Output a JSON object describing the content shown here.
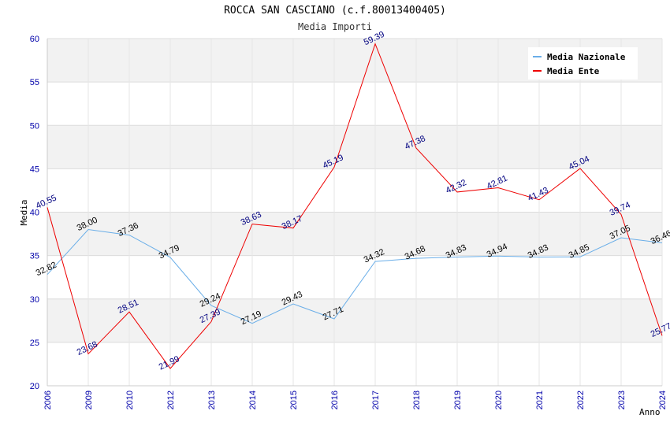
{
  "title": "ROCCA SAN CASCIANO (c.f.80013400405)",
  "subtitle": "Media Importi",
  "chart_data": {
    "type": "line",
    "categories": [
      "2006",
      "2009",
      "2010",
      "2012",
      "2013",
      "2014",
      "2015",
      "2016",
      "2017",
      "2018",
      "2019",
      "2020",
      "2021",
      "2022",
      "2023",
      "2024"
    ],
    "series": [
      {
        "name": "Media Nazionale",
        "color": "#6aaee8",
        "values": [
          32.82,
          38.0,
          37.36,
          34.79,
          29.24,
          27.19,
          29.43,
          27.71,
          34.32,
          34.68,
          34.83,
          34.94,
          34.83,
          34.85,
          37.05,
          36.46
        ]
      },
      {
        "name": "Media Ente",
        "color": "#ee0000",
        "values": [
          40.55,
          23.68,
          28.51,
          21.99,
          27.39,
          38.63,
          38.17,
          45.19,
          59.39,
          47.38,
          42.32,
          42.81,
          41.43,
          45.04,
          39.74,
          25.77
        ]
      }
    ],
    "xlabel": "Anno",
    "ylabel": "Media",
    "ylim": [
      20,
      60
    ],
    "yticks": [
      20,
      25,
      30,
      35,
      40,
      45,
      50,
      55,
      60
    ],
    "grid": true,
    "legend": "top-right"
  }
}
